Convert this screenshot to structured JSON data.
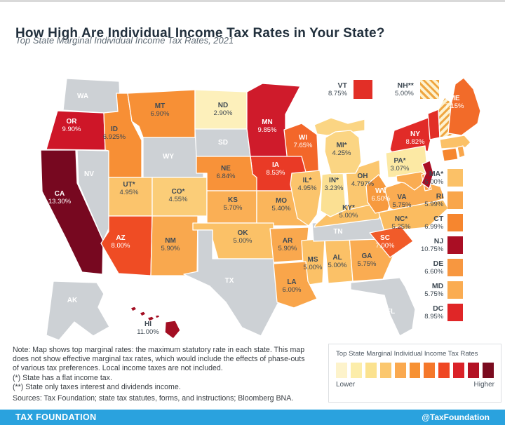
{
  "header": {
    "title": "How High Are Individual Income Tax Rates in Your State?",
    "subtitle": "Top State Marginal Individual Income Tax Rates, 2021"
  },
  "map": {
    "states": {
      "WA": {
        "abbr": "WA",
        "rate": null,
        "fill": "#cdd1d5",
        "text": "light"
      },
      "OR": {
        "abbr": "OR",
        "rate": "9.90%",
        "fill": "#ce1628",
        "text": "light"
      },
      "CA": {
        "abbr": "CA",
        "rate": "13.30%",
        "fill": "#770820",
        "text": "light"
      },
      "NV": {
        "abbr": "NV",
        "rate": null,
        "fill": "#cdd1d5",
        "text": "light"
      },
      "ID": {
        "abbr": "ID",
        "rate": "6.925%",
        "fill": "#f78f35",
        "text": "dark"
      },
      "MT": {
        "abbr": "MT",
        "rate": "6.90%",
        "fill": "#f79036",
        "text": "dark"
      },
      "WY": {
        "abbr": "WY",
        "rate": null,
        "fill": "#cdd1d5",
        "text": "light"
      },
      "UT": {
        "abbr": "UT*",
        "rate": "4.95%",
        "fill": "#fbc46c",
        "text": "dark"
      },
      "CO": {
        "abbr": "CO*",
        "rate": "4.55%",
        "fill": "#fbcd78",
        "text": "dark"
      },
      "AZ": {
        "abbr": "AZ",
        "rate": "8.00%",
        "fill": "#ef4c24",
        "text": "light"
      },
      "NM": {
        "abbr": "NM",
        "rate": "5.90%",
        "fill": "#f9a84e",
        "text": "dark"
      },
      "ND": {
        "abbr": "ND",
        "rate": "2.90%",
        "fill": "#fdf0bb",
        "text": "dark"
      },
      "SD": {
        "abbr": "SD",
        "rate": null,
        "fill": "#cdd1d5",
        "text": "light"
      },
      "NE": {
        "abbr": "NE",
        "rate": "6.84%",
        "fill": "#f89239",
        "text": "dark"
      },
      "KS": {
        "abbr": "KS",
        "rate": "5.70%",
        "fill": "#faaf55",
        "text": "dark"
      },
      "OK": {
        "abbr": "OK",
        "rate": "5.00%",
        "fill": "#fbc167",
        "text": "dark"
      },
      "TX": {
        "abbr": "TX",
        "rate": null,
        "fill": "#cdd1d5",
        "text": "light"
      },
      "MN": {
        "abbr": "MN",
        "rate": "9.85%",
        "fill": "#cf1b2b",
        "text": "light"
      },
      "IA": {
        "abbr": "IA",
        "rate": "8.53%",
        "fill": "#e93a26",
        "text": "light"
      },
      "MO": {
        "abbr": "MO",
        "rate": "5.40%",
        "fill": "#fab55b",
        "text": "dark"
      },
      "AR": {
        "abbr": "AR",
        "rate": "5.90%",
        "fill": "#f9a84e",
        "text": "dark"
      },
      "LA": {
        "abbr": "LA",
        "rate": "6.00%",
        "fill": "#f9a54a",
        "text": "dark"
      },
      "WI": {
        "abbr": "WI",
        "rate": "7.65%",
        "fill": "#f3672a",
        "text": "light"
      },
      "IL": {
        "abbr": "IL*",
        "rate": "4.95%",
        "fill": "#fbc46c",
        "text": "dark"
      },
      "IN": {
        "abbr": "IN*",
        "rate": "3.23%",
        "fill": "#fbe093",
        "text": "dark"
      },
      "MI": {
        "abbr": "MI*",
        "rate": "4.25%",
        "fill": "#fbd583",
        "text": "dark"
      },
      "MIUP": {
        "abbr": "",
        "rate": null,
        "fill": "#fbd583",
        "text": "dark"
      },
      "OH": {
        "abbr": "OH",
        "rate": "4.797%",
        "fill": "#fbc76f",
        "text": "dark"
      },
      "KY": {
        "abbr": "KY*",
        "rate": "5.00%",
        "fill": "#fbc167",
        "text": "dark"
      },
      "TN": {
        "abbr": "TN",
        "rate": null,
        "fill": "#cdd1d5",
        "text": "light"
      },
      "WV": {
        "abbr": "WV",
        "rate": "6.50%",
        "fill": "#f79a3f",
        "text": "light"
      },
      "VA": {
        "abbr": "VA",
        "rate": "5.75%",
        "fill": "#faac52",
        "text": "dark"
      },
      "NC": {
        "abbr": "NC*",
        "rate": "5.25%",
        "fill": "#fbbc60",
        "text": "dark"
      },
      "SC": {
        "abbr": "SC",
        "rate": "7.00%",
        "fill": "#f15b29",
        "text": "light"
      },
      "GA": {
        "abbr": "GA",
        "rate": "5.75%",
        "fill": "#faac52",
        "text": "dark"
      },
      "AL": {
        "abbr": "AL",
        "rate": "5.00%",
        "fill": "#fbc167",
        "text": "dark"
      },
      "MS": {
        "abbr": "MS",
        "rate": "5.00%",
        "fill": "#fbc167",
        "text": "dark"
      },
      "FL": {
        "abbr": "FL",
        "rate": null,
        "fill": "#cdd1d5",
        "text": "light"
      },
      "NY": {
        "abbr": "NY",
        "rate": "8.82%",
        "fill": "#e12b28",
        "text": "light"
      },
      "PA": {
        "abbr": "PA*",
        "rate": "3.07%",
        "fill": "#fce9a4",
        "text": "dark"
      },
      "ME": {
        "abbr": "ME",
        "rate": "7.15%",
        "fill": "#f26b29",
        "text": "light"
      },
      "VT": {
        "abbr": "VT",
        "rate": null,
        "fill": "#e22f27",
        "text": "light"
      },
      "NH": {
        "abbr": "NH",
        "rate": null,
        "fill": "#fdf2d0",
        "text": "dark",
        "hatch": true
      },
      "MA": {
        "abbr": "MA",
        "rate": null,
        "fill": "#fbc167",
        "text": "dark"
      },
      "CT": {
        "abbr": "CT",
        "rate": null,
        "fill": "#f6862f",
        "text": "dark"
      },
      "RI": {
        "abbr": "RI",
        "rate": null,
        "fill": "#f9a64b",
        "text": "dark"
      },
      "NJ": {
        "abbr": "NJ",
        "rate": null,
        "fill": "#aa0e24",
        "text": "light"
      },
      "MD": {
        "abbr": "MD",
        "rate": null,
        "fill": "#faac52",
        "text": "dark"
      },
      "DE": {
        "abbr": "DE",
        "rate": null,
        "fill": "#f79740",
        "text": "dark"
      },
      "AK": {
        "abbr": "AK",
        "rate": null,
        "fill": "#cdd1d5",
        "text": "light"
      },
      "HI": {
        "abbr": "HI",
        "rate": "11.00%",
        "fill": "#a30e23",
        "text": "dark"
      }
    }
  },
  "legend_top": {
    "vt": {
      "abbr": "VT",
      "rate": "8.75%",
      "color": "#e22f27"
    },
    "nh": {
      "abbr": "NH**",
      "rate": "5.00%"
    }
  },
  "side_list": [
    {
      "abbr": "MA*",
      "rate": "5.00%",
      "color": "#fbc167"
    },
    {
      "abbr": "RI",
      "rate": "5.99%",
      "color": "#f9a64b"
    },
    {
      "abbr": "CT",
      "rate": "6.99%",
      "color": "#f6862f"
    },
    {
      "abbr": "NJ",
      "rate": "10.75%",
      "color": "#aa0e24"
    },
    {
      "abbr": "DE",
      "rate": "6.60%",
      "color": "#f79740"
    },
    {
      "abbr": "MD",
      "rate": "5.75%",
      "color": "#faac52"
    },
    {
      "abbr": "DC",
      "rate": "8.95%",
      "color": "#e02627"
    }
  ],
  "notes": {
    "lines": [
      "Note: Map shows top marginal rates: the maximum statutory rate in each state. This map",
      "does not show effective marginal tax rates, which would include the effects of phase-outs",
      "of various tax preferences. Local income taxes are not included.",
      "(*) State has a flat income tax.",
      "(**) State only taxes interest and dividends income."
    ],
    "sources": "Sources: Tax Foundation; state tax statutes, forms, and instructions; Bloomberg BNA."
  },
  "scale": {
    "title": "Top State Marginal Individual Income Tax Rates",
    "colors": [
      "#fdf3cb",
      "#fcedaa",
      "#fbe28f",
      "#fbc76e",
      "#faa94f",
      "#f79133",
      "#f5782b",
      "#ef4723",
      "#da2228",
      "#b31224",
      "#7a0b1f"
    ],
    "lower": "Lower",
    "higher": "Higher"
  },
  "footer": {
    "brand": "TAX FOUNDATION",
    "handle": "@TaxFoundation",
    "color": "#2aa2de"
  },
  "chart_data": {
    "type": "heatmap",
    "title": "Top State Marginal Individual Income Tax Rates, 2021",
    "unit": "%",
    "legend": {
      "low_label": "Lower",
      "high_label": "Higher"
    },
    "values": {
      "AL": 5.0,
      "AK": null,
      "AZ": 8.0,
      "AR": 5.9,
      "CA": 13.3,
      "CO": 4.55,
      "CT": 6.99,
      "DE": 6.6,
      "DC": 8.95,
      "FL": null,
      "GA": 5.75,
      "HI": 11.0,
      "ID": 6.925,
      "IL": 4.95,
      "IN": 3.23,
      "IA": 8.53,
      "KS": 5.7,
      "KY": 5.0,
      "LA": 6.0,
      "ME": 7.15,
      "MD": 5.75,
      "MA": 5.0,
      "MI": 4.25,
      "MN": 9.85,
      "MS": 5.0,
      "MO": 5.4,
      "MT": 6.9,
      "NE": 6.84,
      "NV": null,
      "NH": 5.0,
      "NJ": 10.75,
      "NM": 5.9,
      "NY": 8.82,
      "NC": 5.25,
      "ND": 2.9,
      "OH": 4.797,
      "OK": 5.0,
      "OR": 9.9,
      "PA": 3.07,
      "RI": 5.99,
      "SC": 7.0,
      "SD": null,
      "TN": null,
      "TX": null,
      "UT": 4.95,
      "VT": 8.75,
      "VA": 5.75,
      "WA": null,
      "WV": 6.5,
      "WI": 7.65,
      "WY": null
    },
    "flat_tax_states": [
      "UT",
      "CO",
      "IL",
      "IN",
      "MI",
      "PA",
      "KY",
      "NC",
      "MA"
    ],
    "interest_dividends_only": [
      "NH"
    ]
  }
}
